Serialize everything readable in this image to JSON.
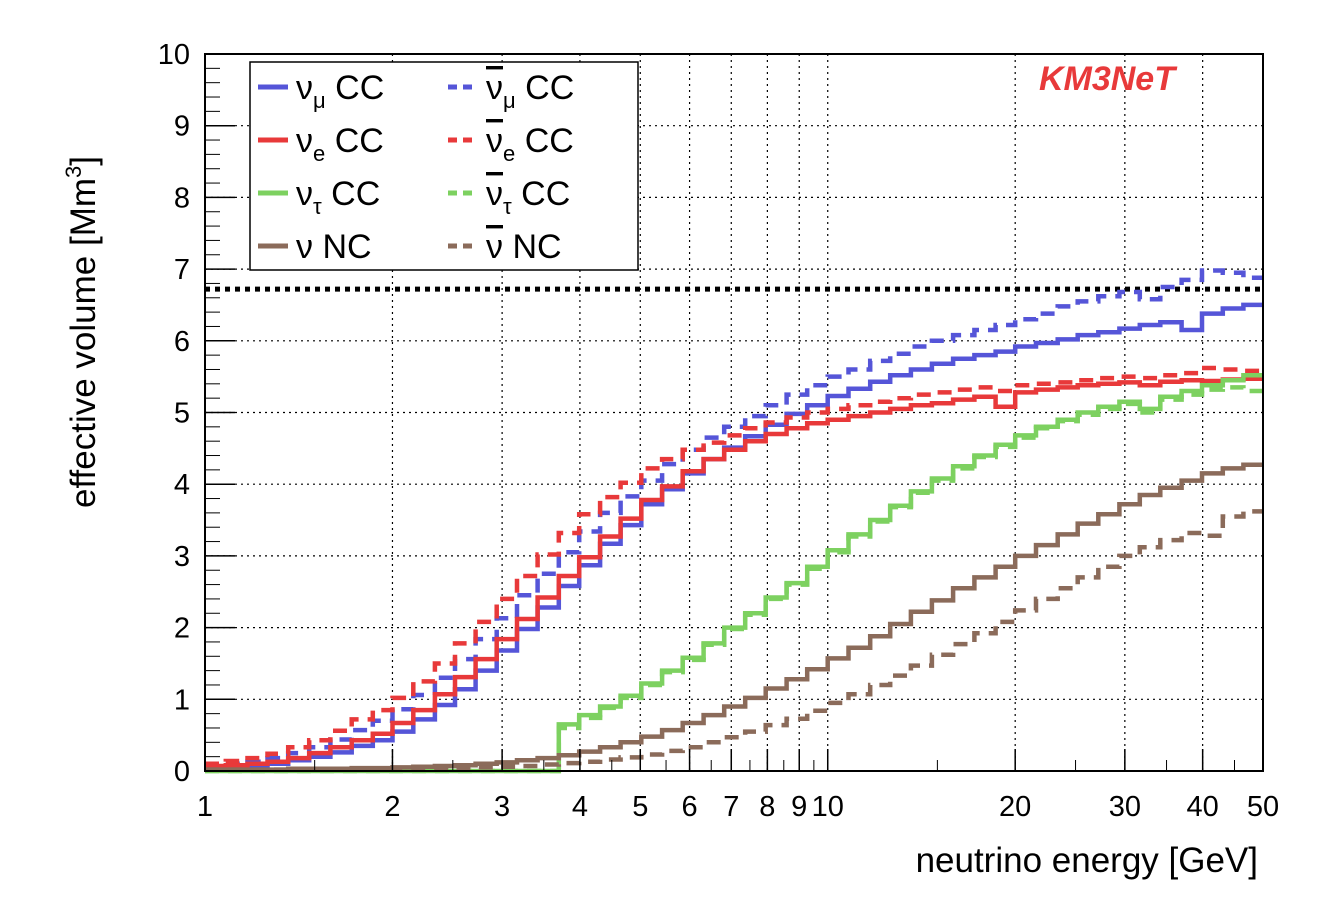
{
  "chart_data": {
    "type": "line",
    "subtype": "step histogram",
    "annotation": "KM3NeT",
    "annotation_color": "#e8393a",
    "xlabel": "neutrino energy [GeV]",
    "ylabel": "effective volume [Mm",
    "ylabel_sup": "3",
    "ylabel_end": "]",
    "xscale": "log",
    "xlim": [
      1,
      50
    ],
    "ylim": [
      0,
      10
    ],
    "grid": true,
    "legend_position": "top-left",
    "x_ticks": [
      "1",
      "2",
      "3",
      "4",
      "5",
      "6",
      "7",
      "8",
      "9",
      "10",
      "20",
      "30",
      "40",
      "50"
    ],
    "y_ticks": [
      "0",
      "1",
      "2",
      "3",
      "4",
      "5",
      "6",
      "7",
      "8",
      "9",
      "10"
    ],
    "reference_line": {
      "y": 6.72,
      "style": "dotted",
      "color": "#000000"
    },
    "bin_edges": [
      1.0,
      1.08,
      1.17,
      1.26,
      1.36,
      1.47,
      1.59,
      1.72,
      1.86,
      2.0,
      2.16,
      2.34,
      2.52,
      2.72,
      2.94,
      3.17,
      3.42,
      3.7,
      3.99,
      4.31,
      4.65,
      5.02,
      5.42,
      5.85,
      6.32,
      6.82,
      7.37,
      7.95,
      8.59,
      9.27,
      10.0,
      10.8,
      11.7,
      12.6,
      13.6,
      14.7,
      15.9,
      17.2,
      18.6,
      20.0,
      21.6,
      23.4,
      25.2,
      27.2,
      29.4,
      31.7,
      34.2,
      37.0,
      39.9,
      43.1,
      46.5,
      50.0
    ],
    "series": [
      {
        "name": "ν",
        "sub": "μ",
        "bar": false,
        "suffix": " CC",
        "color": "#5555d8",
        "dashed": false,
        "values": [
          0.05,
          0.05,
          0.07,
          0.1,
          0.15,
          0.2,
          0.26,
          0.35,
          0.43,
          0.55,
          0.72,
          0.92,
          1.14,
          1.4,
          1.68,
          1.98,
          2.28,
          2.58,
          2.87,
          3.17,
          3.43,
          3.72,
          3.93,
          4.15,
          4.35,
          4.51,
          4.67,
          4.83,
          4.98,
          5.1,
          5.23,
          5.33,
          5.43,
          5.52,
          5.6,
          5.68,
          5.75,
          5.8,
          5.85,
          5.92,
          5.97,
          6.02,
          6.08,
          6.12,
          6.17,
          6.22,
          6.26,
          6.15,
          6.38,
          6.45,
          6.5
        ]
      },
      {
        "name": "ν",
        "sub": "μ",
        "bar": true,
        "suffix": " CC",
        "color": "#5555d8",
        "dashed": true,
        "values": [
          0.07,
          0.1,
          0.13,
          0.18,
          0.25,
          0.33,
          0.44,
          0.57,
          0.7,
          0.86,
          1.06,
          1.3,
          1.56,
          1.84,
          2.13,
          2.45,
          2.75,
          3.05,
          3.34,
          3.6,
          3.83,
          4.05,
          4.28,
          4.48,
          4.65,
          4.8,
          4.95,
          5.1,
          5.25,
          5.38,
          5.5,
          5.6,
          5.72,
          5.82,
          5.92,
          6.0,
          6.08,
          6.15,
          6.22,
          6.3,
          6.38,
          6.48,
          6.55,
          6.62,
          6.68,
          6.58,
          6.75,
          6.85,
          6.98,
          6.95,
          6.88
        ]
      },
      {
        "name": "ν",
        "sub": "e",
        "bar": false,
        "suffix": " CC",
        "color": "#e8393a",
        "dashed": false,
        "values": [
          0.07,
          0.08,
          0.1,
          0.13,
          0.18,
          0.25,
          0.33,
          0.43,
          0.52,
          0.67,
          0.85,
          1.07,
          1.31,
          1.56,
          1.84,
          2.12,
          2.42,
          2.72,
          2.98,
          3.27,
          3.52,
          3.78,
          3.97,
          4.18,
          4.35,
          4.48,
          4.6,
          4.7,
          4.78,
          4.85,
          4.9,
          4.95,
          5.0,
          5.05,
          5.1,
          5.13,
          5.18,
          5.22,
          5.08,
          5.28,
          5.32,
          5.35,
          5.38,
          5.4,
          5.42,
          5.38,
          5.43,
          5.45,
          5.44,
          5.46,
          5.47
        ]
      },
      {
        "name": "ν",
        "sub": "e",
        "bar": true,
        "suffix": " CC",
        "color": "#e8393a",
        "dashed": true,
        "values": [
          0.1,
          0.14,
          0.18,
          0.24,
          0.33,
          0.43,
          0.56,
          0.72,
          0.85,
          1.02,
          1.25,
          1.5,
          1.78,
          2.08,
          2.4,
          2.72,
          3.02,
          3.32,
          3.58,
          3.82,
          4.02,
          4.22,
          4.35,
          4.48,
          4.58,
          4.68,
          4.78,
          4.86,
          4.93,
          5.0,
          5.05,
          5.1,
          5.15,
          5.2,
          5.25,
          5.28,
          5.32,
          5.35,
          5.3,
          5.38,
          5.4,
          5.42,
          5.45,
          5.48,
          5.5,
          5.48,
          5.52,
          5.55,
          5.62,
          5.6,
          5.58
        ]
      },
      {
        "name": "ν",
        "sub": "τ",
        "bar": false,
        "suffix": " CC",
        "color": "#7dd160",
        "dashed": false,
        "values": [
          0,
          0,
          0,
          0,
          0,
          0,
          0,
          0,
          0,
          0,
          0,
          0,
          0,
          0,
          0,
          0,
          0,
          0.65,
          0.78,
          0.9,
          1.05,
          1.22,
          1.4,
          1.58,
          1.78,
          2.0,
          2.2,
          2.42,
          2.62,
          2.85,
          3.08,
          3.3,
          3.5,
          3.7,
          3.9,
          4.08,
          4.25,
          4.4,
          4.55,
          4.68,
          4.8,
          4.9,
          5.0,
          5.08,
          5.15,
          5.05,
          5.22,
          5.3,
          5.38,
          5.45,
          5.52
        ]
      },
      {
        "name": "ν",
        "sub": "τ",
        "bar": true,
        "suffix": " CC",
        "color": "#7dd160",
        "dashed": true,
        "values": [
          0,
          0,
          0,
          0,
          0,
          0,
          0,
          0,
          0,
          0,
          0,
          0,
          0,
          0,
          0,
          0,
          0,
          0.6,
          0.74,
          0.88,
          1.02,
          1.2,
          1.38,
          1.55,
          1.76,
          1.98,
          2.18,
          2.4,
          2.6,
          2.82,
          3.05,
          3.27,
          3.48,
          3.68,
          3.88,
          4.05,
          4.22,
          4.38,
          4.52,
          4.65,
          4.78,
          4.88,
          4.97,
          5.05,
          5.12,
          5.0,
          5.18,
          5.25,
          5.32,
          5.35,
          5.3
        ]
      },
      {
        "name": "ν",
        "sub": "",
        "bar": false,
        "suffix": " NC",
        "color": "#8b6b5a",
        "dashed": false,
        "values": [
          0.02,
          0.02,
          0.02,
          0.02,
          0.03,
          0.03,
          0.03,
          0.04,
          0.04,
          0.05,
          0.06,
          0.07,
          0.08,
          0.1,
          0.12,
          0.15,
          0.18,
          0.22,
          0.27,
          0.33,
          0.4,
          0.48,
          0.57,
          0.67,
          0.78,
          0.9,
          1.02,
          1.15,
          1.28,
          1.42,
          1.57,
          1.72,
          1.88,
          2.05,
          2.22,
          2.38,
          2.55,
          2.7,
          2.85,
          3.0,
          3.15,
          3.3,
          3.45,
          3.58,
          3.72,
          3.85,
          3.95,
          4.05,
          4.15,
          4.22,
          4.27
        ]
      },
      {
        "name": "ν",
        "sub": "",
        "bar": true,
        "suffix": " NC",
        "color": "#8b6b5a",
        "dashed": true,
        "values": [
          0.02,
          0.02,
          0.02,
          0.02,
          0.02,
          0.02,
          0.02,
          0.02,
          0.02,
          0.03,
          0.03,
          0.03,
          0.04,
          0.05,
          0.06,
          0.07,
          0.09,
          0.11,
          0.13,
          0.16,
          0.19,
          0.23,
          0.28,
          0.33,
          0.4,
          0.47,
          0.55,
          0.64,
          0.73,
          0.84,
          0.95,
          1.07,
          1.2,
          1.33,
          1.47,
          1.62,
          1.77,
          1.92,
          2.08,
          2.24,
          2.4,
          2.55,
          2.7,
          2.85,
          3.0,
          3.12,
          3.22,
          3.32,
          3.28,
          3.55,
          3.62
        ]
      }
    ]
  }
}
